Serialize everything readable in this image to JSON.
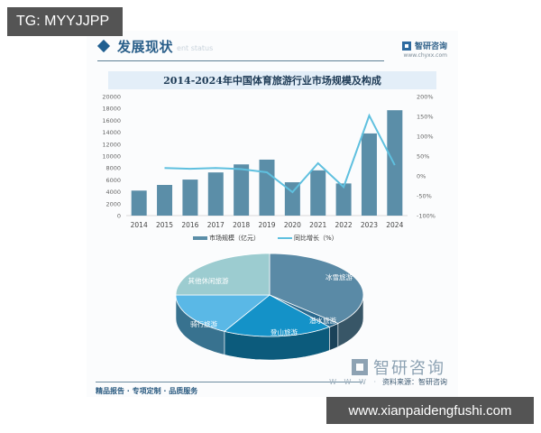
{
  "overlay": {
    "tg_label": "TG: MYYJJPP",
    "site_url": "www.xianpaidengfushi.com"
  },
  "header": {
    "section_title": "发展现状",
    "section_subtitle": "ent status",
    "brand_name": "智研咨询",
    "brand_url": "www.chyxx.com"
  },
  "chart_title": "2014-2024年中国体育旅游行业市场规模及构成",
  "footer": {
    "slogan": "精品报告 · 专项定制 · 品质服务",
    "brand_name": "智研咨询",
    "www": "W W W ·",
    "source": "资料来源：智研咨询"
  },
  "colors": {
    "bar": "#5b8ea8",
    "line": "#5fc0df",
    "title_bar_bg": "#e3eef8",
    "brand_blue": "#2d6aa0"
  },
  "chart_data": [
    {
      "type": "bar+line",
      "title": "2014-2024年中国体育旅游行业市场规模及构成",
      "categories": [
        "2014",
        "2015",
        "2016",
        "2017",
        "2018",
        "2019",
        "2020",
        "2021",
        "2022",
        "2023",
        "2024"
      ],
      "series": [
        {
          "name": "市场规模（亿元）",
          "type": "bar",
          "axis": "left",
          "values": [
            4200,
            5150,
            6050,
            7250,
            8600,
            9400,
            5600,
            7600,
            5400,
            13800,
            17700
          ]
        },
        {
          "name": "同比增长（%）",
          "type": "line",
          "axis": "right",
          "values": [
            null,
            20,
            18,
            20,
            17,
            9,
            -41,
            32,
            -28,
            152,
            27
          ]
        }
      ],
      "left_axis": {
        "ylim": [
          0,
          20000
        ],
        "ticks": [
          "0",
          "2000",
          "4000",
          "6000",
          "8000",
          "10000",
          "12000",
          "14000",
          "16000",
          "18000",
          "20000"
        ]
      },
      "right_axis": {
        "ylim": [
          -100,
          200
        ],
        "ticks": [
          "-100%",
          "-50%",
          "0%",
          "50%",
          "100%",
          "150%",
          "200%"
        ]
      },
      "legend": {
        "position": "bottom",
        "entries": [
          "市场规模（亿元）",
          "同比增长（%）"
        ]
      },
      "grid": false
    },
    {
      "type": "pie",
      "style": "3d",
      "slices": [
        {
          "label": "冰雪旅游",
          "value": 37,
          "color": "#5a8aa6"
        },
        {
          "label": "潜水旅游",
          "value": 2,
          "color": "#2b6a8f"
        },
        {
          "label": "登山旅游",
          "value": 19,
          "color": "#1492c8"
        },
        {
          "label": "骑行旅游",
          "value": 17,
          "color": "#5ab8e6"
        },
        {
          "label": "其他休闲旅游",
          "value": 25,
          "color": "#9cccd0"
        }
      ]
    }
  ]
}
